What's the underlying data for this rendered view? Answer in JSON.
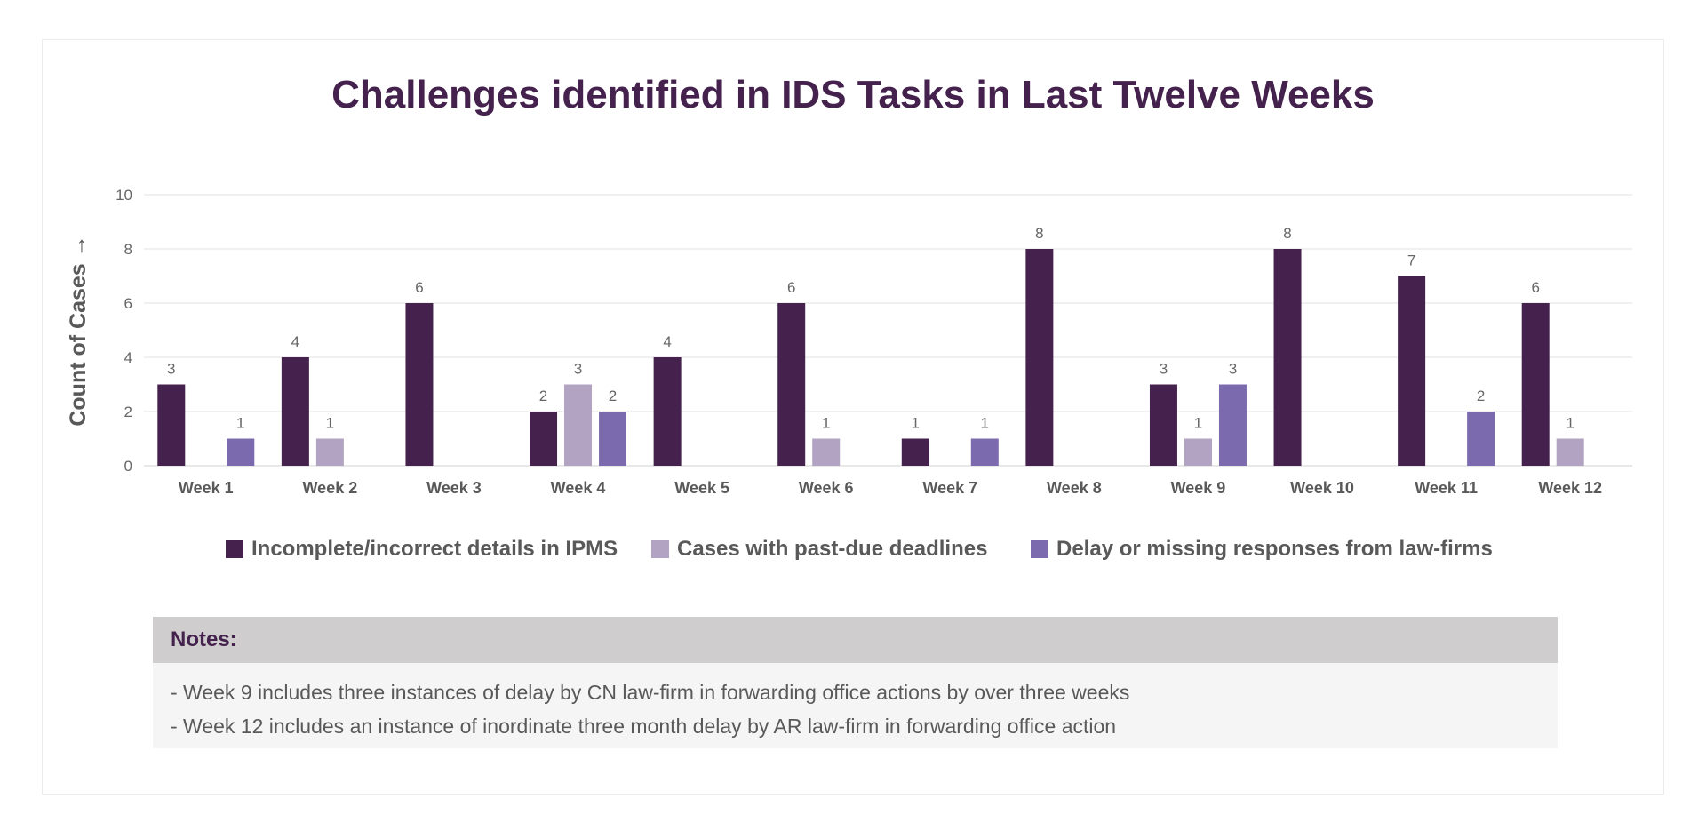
{
  "chart_data": {
    "type": "bar",
    "title": "Challenges identified in IDS Tasks in Last Twelve Weeks",
    "ylabel": "Count of Cases →",
    "xlabel": "",
    "ylim": [
      0,
      10
    ],
    "yticks": [
      "0",
      "2",
      "4",
      "6",
      "8",
      "10"
    ],
    "grid": true,
    "legend_position": "bottom",
    "categories": [
      "Week 1",
      "Week 2",
      "Week 3",
      "Week 4",
      "Week 5",
      "Week 6",
      "Week 7",
      "Week 8",
      "Week 9",
      "Week 10",
      "Week 11",
      "Week 12"
    ],
    "series": [
      {
        "name": "Incomplete/incorrect details in IPMS",
        "color": "#44224d",
        "values": [
          3,
          4,
          6,
          2,
          4,
          6,
          1,
          8,
          3,
          8,
          7,
          6
        ]
      },
      {
        "name": "Cases with past-due deadlines",
        "color": "#b1a3c1",
        "values": [
          0,
          1,
          0,
          3,
          0,
          1,
          0,
          0,
          1,
          0,
          0,
          1
        ]
      },
      {
        "name": "Delay or missing responses from law-firms",
        "color": "#7b6aad",
        "values": [
          1,
          0,
          0,
          2,
          0,
          0,
          1,
          0,
          3,
          0,
          2,
          0
        ]
      }
    ]
  },
  "notes": {
    "header": "Notes:",
    "lines": [
      "- Week 9 includes three instances of delay by CN law-firm in forwarding office actions by over three weeks",
      "- Week 12 includes an instance of inordinate three month delay by AR law-firm in forwarding office action"
    ]
  }
}
